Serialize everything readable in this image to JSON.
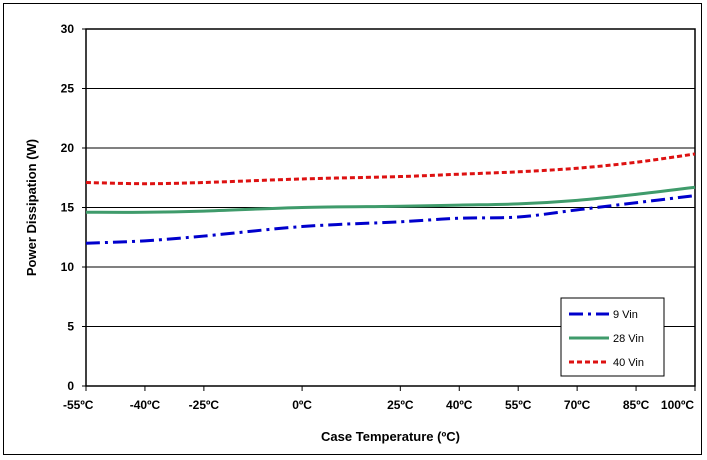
{
  "chart_data": {
    "type": "line",
    "title": "",
    "xlabel": "Case Temperature (ºC)",
    "ylabel": "Power Dissipation (W)",
    "x": [
      -55,
      -40,
      -25,
      0,
      25,
      40,
      55,
      70,
      85,
      100
    ],
    "x_tick_labels": [
      "-55ºC",
      "-40ºC",
      "-25ºC",
      "0ºC",
      "25ºC",
      "40ºC",
      "55ºC",
      "70ºC",
      "85ºC",
      "100ºC"
    ],
    "y_ticks": [
      0,
      5,
      10,
      15,
      20,
      25,
      30
    ],
    "y_tick_labels": [
      "0",
      "5",
      "10",
      "15",
      "20",
      "25",
      "30"
    ],
    "xlim": [
      -55,
      100
    ],
    "ylim": [
      0,
      30
    ],
    "grid": "horizontal",
    "legend_position": "bottom-right",
    "series": [
      {
        "name": "9 Vin",
        "color": "#0000cc",
        "dash": "dash-dot",
        "values": [
          12.0,
          12.2,
          12.6,
          13.4,
          13.8,
          14.1,
          14.2,
          14.8,
          15.4,
          16.0
        ]
      },
      {
        "name": "28 Vin",
        "color": "#3f9b6b",
        "dash": "solid",
        "values": [
          14.6,
          14.6,
          14.7,
          15.0,
          15.1,
          15.2,
          15.3,
          15.6,
          16.1,
          16.7
        ]
      },
      {
        "name": "40 Vin",
        "color": "#dd1111",
        "dash": "dotted",
        "values": [
          17.1,
          17.0,
          17.1,
          17.4,
          17.6,
          17.8,
          18.0,
          18.3,
          18.8,
          19.5
        ]
      }
    ]
  }
}
